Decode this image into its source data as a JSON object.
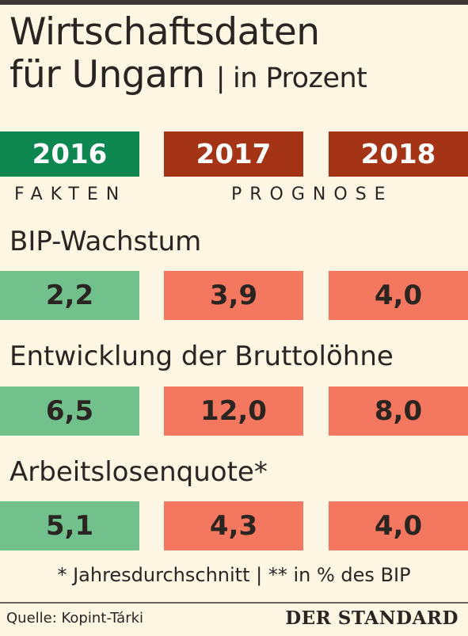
{
  "title_line1": "Wirtschaftsdaten",
  "title_line2": "für Ungarn",
  "title_separator": "|",
  "title_unit": "in Prozent",
  "colors": {
    "actual_header": "#0d8650",
    "forecast_header": "#a53315",
    "actual_cell": "#72c18c",
    "forecast_cell": "#f4775f"
  },
  "chart_data": {
    "type": "table",
    "columns": [
      "2016",
      "2017",
      "2018"
    ],
    "column_groups": [
      {
        "label": "FAKTEN",
        "columns": [
          "2016"
        ]
      },
      {
        "label": "PROGNOSE",
        "columns": [
          "2017",
          "2018"
        ]
      }
    ],
    "rows": [
      {
        "label": "BIP-Wachstum",
        "values": [
          "2,2",
          "3,9",
          "4,0"
        ]
      },
      {
        "label": "Entwicklung der Bruttolöhne",
        "values": [
          "6,5",
          "12,0",
          "8,0"
        ]
      },
      {
        "label": "Arbeitslosenquote*",
        "values": [
          "5,1",
          "4,3",
          "4,0"
        ]
      }
    ]
  },
  "footnote": "* Jahresdurchschnitt  |  ** in % des BIP",
  "source": "Quelle: Kopint-Tárki",
  "logo": "DER STANDARD"
}
